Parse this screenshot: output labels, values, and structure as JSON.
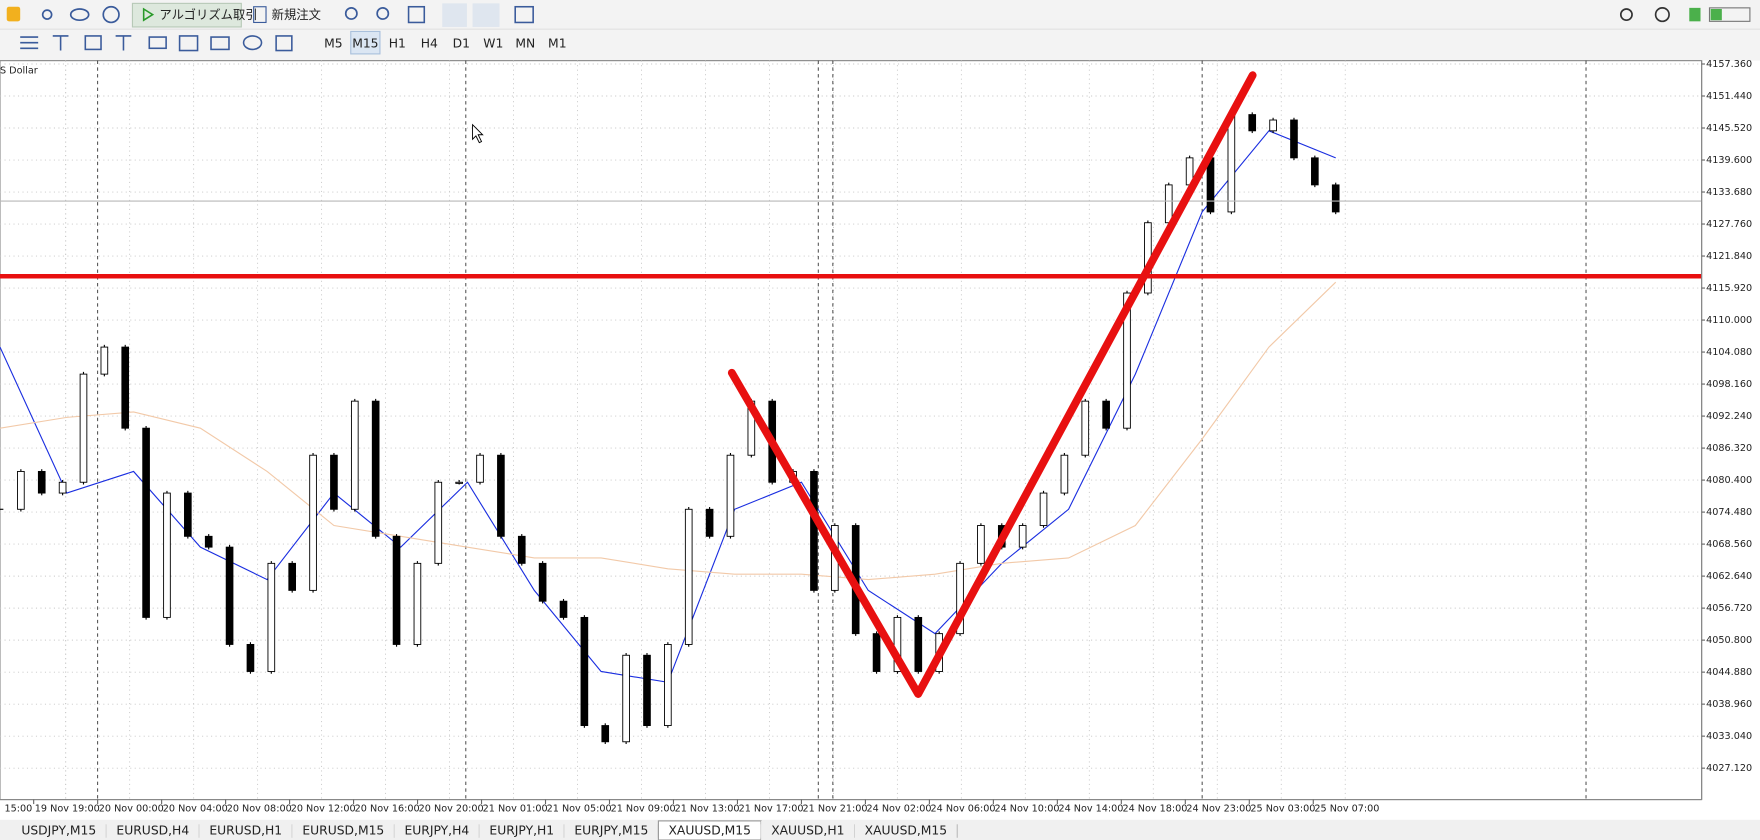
{
  "toolbar": {
    "algo_trading": "アルゴリズム取引",
    "new_order": "新規注文",
    "timeframes": [
      "M5",
      "M15",
      "H1",
      "H4",
      "D1",
      "W1",
      "MN",
      "M1"
    ],
    "active_timeframe": 1
  },
  "chart_data": {
    "type": "candlestick",
    "title": "S Dollar",
    "categories": [
      "15:00",
      "19 Nov 19:00",
      "20 Nov 00:00",
      "20 Nov 04:00",
      "20 Nov 08:00",
      "20 Nov 12:00",
      "20 Nov 16:00",
      "20 Nov 20:00",
      "21 Nov 01:00",
      "21 Nov 05:00",
      "21 Nov 09:00",
      "21 Nov 13:00",
      "21 Nov 17:00",
      "21 Nov 21:00",
      "24 Nov 02:00",
      "24 Nov 06:00",
      "24 Nov 10:00",
      "24 Nov 14:00",
      "24 Nov 18:00",
      "24 Nov 23:00",
      "25 Nov 03:00",
      "25 Nov 07:00"
    ],
    "ylim": [
      4021.31,
      4157.98
    ],
    "yticks": [
      {
        "value": 4157.36,
        "label": "4157.360"
      },
      {
        "value": 4151.44,
        "label": "4151.440"
      },
      {
        "value": 4145.52,
        "label": "4145.520"
      },
      {
        "value": 4139.6,
        "label": "4139.600"
      },
      {
        "value": 4133.68,
        "label": "4133.680"
      },
      {
        "value": 4127.76,
        "label": "4127.760"
      },
      {
        "value": 4121.84,
        "label": "4121.840"
      },
      {
        "value": 4115.92,
        "label": "4115.920"
      },
      {
        "value": 4110,
        "label": "4110.000"
      },
      {
        "value": 4104.08,
        "label": "4104.080"
      },
      {
        "value": 4098.16,
        "label": "4098.160"
      },
      {
        "value": 4092.24,
        "label": "4092.240"
      },
      {
        "value": 4086.32,
        "label": "4086.320"
      },
      {
        "value": 4080.4,
        "label": "4080.400"
      },
      {
        "value": 4074.48,
        "label": "4074.480"
      },
      {
        "value": 4068.56,
        "label": "4068.560"
      },
      {
        "value": 4062.64,
        "label": "4062.640"
      },
      {
        "value": 4056.72,
        "label": "4056.720"
      },
      {
        "value": 4050.8,
        "label": "4050.800"
      },
      {
        "value": 4044.88,
        "label": "4044.880"
      },
      {
        "value": 4038.96,
        "label": "4038.960"
      },
      {
        "value": 4033.04,
        "label": "4033.040"
      },
      {
        "value": 4027.12,
        "label": "4027.120"
      }
    ],
    "grid": true,
    "closes": {
      "color": "#000000",
      "values": [
        4075,
        4082,
        4078,
        4080,
        4100,
        4105,
        4090,
        4055,
        4078,
        4070,
        4068,
        4050,
        4045,
        4065,
        4060,
        4085,
        4075,
        4095,
        4070,
        4050,
        4065,
        4080,
        4080,
        4085,
        4070,
        4065,
        4058,
        4055,
        4035,
        4032,
        4048,
        4035,
        4050,
        4075,
        4070,
        4085,
        4095,
        4080,
        4082,
        4060,
        4072,
        4052,
        4045,
        4055,
        4045,
        4052,
        4065,
        4072,
        4068,
        4072,
        4078,
        4085,
        4095,
        4090,
        4115,
        4128,
        4135,
        4140,
        4130,
        4148,
        4145,
        4147,
        4140,
        4135,
        4130
      ]
    },
    "moving_averages": [
      {
        "color": "#1a2ee0",
        "values": [
          4105,
          4078,
          4082,
          4068,
          4062,
          4078,
          4068,
          4080,
          4060,
          4045,
          4043,
          4075,
          4080,
          4060,
          4052,
          4065,
          4075,
          4100,
          4130,
          4145,
          4140
        ]
      },
      {
        "color": "#f2c9a8",
        "values": [
          4090,
          4092,
          4093,
          4090,
          4082,
          4072,
          4070,
          4068,
          4066,
          4066,
          4064,
          4063,
          4063,
          4062,
          4063,
          4065,
          4066,
          4072,
          4088,
          4105,
          4117
        ]
      }
    ],
    "levels": [
      {
        "color": "#e81010",
        "value": 4118.1
      },
      {
        "color": "#b8b8b8",
        "value": 4132.0
      }
    ]
  },
  "tabs": [
    "USDJPY,M15",
    "EURUSD,H4",
    "EURUSD,H1",
    "EURUSD,M15",
    "EURJPY,H4",
    "EURJPY,H1",
    "EURJPY,M15",
    "XAUUSD,M15",
    "XAUUSD,H1",
    "XAUUSD,M15"
  ],
  "active_tab": 7
}
